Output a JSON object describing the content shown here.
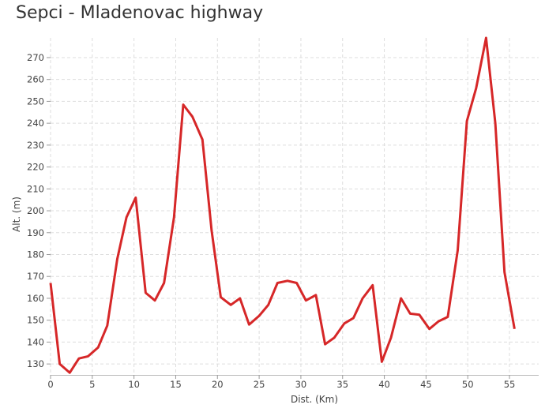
{
  "chart_data": {
    "type": "line",
    "title": "Sepci - Mladenovac highway",
    "xlabel": "Dist. (Km)",
    "ylabel": "Alt. (m)",
    "xlim": [
      0,
      58.5
    ],
    "ylim": [
      125,
      279
    ],
    "xticks": [
      0,
      5,
      10,
      15,
      20,
      25,
      30,
      35,
      40,
      45,
      50,
      55
    ],
    "yticks": [
      130,
      140,
      150,
      160,
      170,
      180,
      190,
      200,
      210,
      220,
      230,
      240,
      250,
      260,
      270
    ],
    "grid": true,
    "line_color": "#d62728",
    "series": [
      {
        "x": [
          0,
          1.1,
          2.3,
          3.4,
          4.5,
          5.7,
          6.8,
          8.0,
          9.1,
          10.2,
          11.4,
          12.5,
          13.6,
          14.8,
          15.9,
          17.0,
          18.2,
          19.3,
          20.4,
          21.6,
          22.7,
          23.8,
          25.0,
          26.1,
          27.2,
          28.4,
          29.5,
          30.6,
          31.8,
          32.9,
          34.0,
          35.2,
          36.3,
          37.4,
          38.6,
          39.7,
          40.8,
          42.0,
          43.1,
          44.2,
          45.4,
          46.5,
          47.6,
          48.8,
          49.9,
          51.0,
          52.2,
          53.3,
          54.4,
          55.6
        ],
        "y": [
          167,
          130,
          126,
          132.5,
          133.5,
          137.5,
          147.5,
          178,
          197,
          206,
          162.5,
          159,
          167,
          197,
          248.5,
          243,
          232.5,
          191,
          160.5,
          157,
          160,
          148,
          152,
          157,
          167,
          168,
          167,
          159,
          161.5,
          139,
          142,
          148.5,
          151,
          160,
          166,
          131,
          142,
          160,
          153,
          152.5,
          146,
          149.5,
          151.5,
          182,
          241,
          256,
          279,
          240,
          172,
          146
        ]
      }
    ]
  }
}
